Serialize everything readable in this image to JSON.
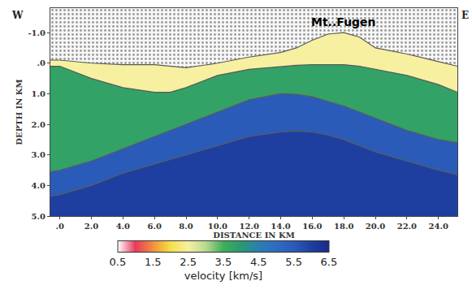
{
  "chart_data": {
    "type": "section",
    "x": [
      -0.6,
      0,
      2,
      4,
      6,
      7,
      8,
      10,
      12,
      14,
      15,
      16,
      17,
      18,
      19,
      20,
      22,
      24,
      25.2
    ],
    "surface": [
      -0.1,
      -0.1,
      0.0,
      0.05,
      0.05,
      0.1,
      0.15,
      0.0,
      -0.2,
      -0.35,
      -0.5,
      -0.75,
      -0.95,
      -1.0,
      -0.85,
      -0.5,
      -0.3,
      -0.05,
      0.1
    ],
    "boundaries": [
      [
        0.1,
        0.1,
        0.5,
        0.8,
        0.95,
        0.95,
        0.8,
        0.4,
        0.2,
        0.1,
        0.07,
        0.05,
        0.05,
        0.05,
        0.1,
        0.2,
        0.4,
        0.7,
        0.95
      ],
      [
        3.55,
        3.5,
        3.2,
        2.8,
        2.4,
        2.2,
        2.0,
        1.6,
        1.2,
        1.0,
        1.02,
        1.1,
        1.25,
        1.4,
        1.6,
        1.8,
        2.2,
        2.5,
        2.6
      ],
      [
        4.35,
        4.3,
        4.0,
        3.6,
        3.3,
        3.15,
        3.0,
        2.7,
        2.4,
        2.25,
        2.22,
        2.25,
        2.35,
        2.5,
        2.7,
        2.9,
        3.2,
        3.5,
        3.65
      ]
    ],
    "layer_velocities": [
      2.5,
      3.8,
      5.5,
      6.0
    ],
    "xlim": [
      -0.6,
      25.2
    ],
    "ylim": [
      5.0,
      -1.8
    ],
    "xticks": [
      {
        "value": 0,
        "label": ".0"
      },
      {
        "value": 2,
        "label": "2.0"
      },
      {
        "value": 4,
        "label": "4.0"
      },
      {
        "value": 6,
        "label": "6.0"
      },
      {
        "value": 8,
        "label": "8.0"
      },
      {
        "value": 10,
        "label": "10.0"
      },
      {
        "value": 12,
        "label": "12.0"
      },
      {
        "value": 14,
        "label": "14.0"
      },
      {
        "value": 16,
        "label": "16.0"
      },
      {
        "value": 18,
        "label": "18.0"
      },
      {
        "value": 20,
        "label": "20.0"
      },
      {
        "value": 22,
        "label": "22.0"
      },
      {
        "value": 24,
        "label": "24.0"
      }
    ],
    "yticks": [
      {
        "value": -1,
        "label": "-1.0"
      },
      {
        "value": 0,
        "label": ".0"
      },
      {
        "value": 1,
        "label": "1.0"
      },
      {
        "value": 2,
        "label": "2.0"
      },
      {
        "value": 3,
        "label": "3.0"
      },
      {
        "value": 4,
        "label": "4.0"
      },
      {
        "value": 5,
        "label": "5.0"
      }
    ],
    "xlabel": "DISTANCE IN KM",
    "ylabel": "DEPTH IN KM",
    "colorbar": {
      "range": [
        0.5,
        6.5
      ],
      "ticks": [
        0.5,
        1.5,
        2.5,
        3.5,
        4.5,
        5.5,
        6.5
      ],
      "title": "velocity [km/s]"
    },
    "annotations": [
      {
        "text": "Mt..Fugen",
        "x": 18,
        "y": -1.0
      }
    ],
    "corner_labels": {
      "left": "W",
      "right": "E"
    },
    "grid": false
  }
}
